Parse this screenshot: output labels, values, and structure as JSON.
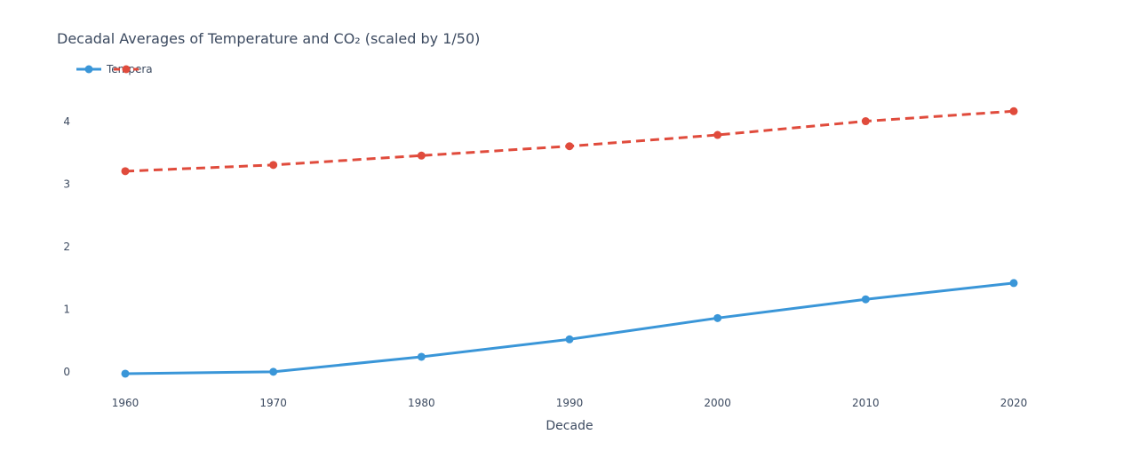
{
  "chart_data": {
    "type": "line",
    "title": "Decadal Averages of Temperature and CO₂ (scaled by 1/50)",
    "xlabel": "Decade",
    "ylabel": "",
    "x": [
      1960,
      1970,
      1980,
      1990,
      2000,
      2010,
      2020
    ],
    "xlim": [
      1960,
      2020
    ],
    "ylim": [
      -0.3,
      4.6
    ],
    "yticks": [
      0,
      1,
      2,
      3,
      4
    ],
    "grid": false,
    "legend": "top-left",
    "series": [
      {
        "name": "Tempera",
        "color": "#3a96d8",
        "dash": "solid",
        "values": [
          -0.03,
          0.0,
          0.24,
          0.52,
          0.86,
          1.16,
          1.42
        ]
      },
      {
        "name": "",
        "color": "#e04b3c",
        "dash": "dash",
        "values": [
          3.21,
          3.31,
          3.46,
          3.61,
          3.79,
          4.01,
          4.17
        ]
      }
    ]
  }
}
